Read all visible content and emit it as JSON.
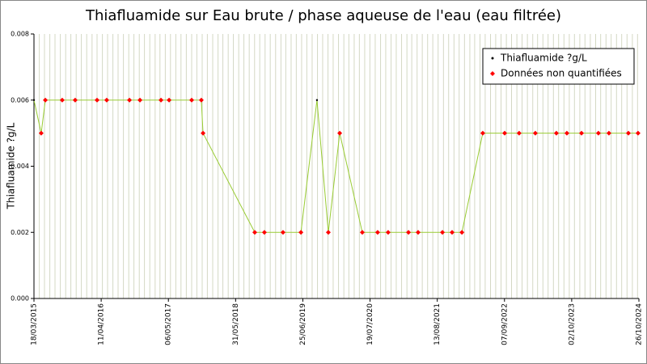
{
  "chart_data": {
    "type": "line",
    "title": "Thiafluamide sur Eau brute / phase aqueuse de l'eau (eau filtrée)",
    "y_label": "Thiafluamide ?g/L",
    "x": [
      "2015-03-18",
      "2015-04-29",
      "2015-05-23",
      "2015-08-29",
      "2015-11-12",
      "2016-03-18",
      "2016-05-13",
      "2016-09-22",
      "2016-11-22",
      "2017-03-24",
      "2017-05-10",
      "2017-09-18",
      "2017-11-13",
      "2017-11-23",
      "2018-09-19",
      "2018-11-14",
      "2019-03-02",
      "2019-06-14",
      "2019-09-15",
      "2019-11-20",
      "2020-01-25",
      "2020-06-04",
      "2020-09-01",
      "2020-11-01",
      "2021-02-27",
      "2021-04-24",
      "2021-09-12",
      "2021-11-07",
      "2022-01-03",
      "2022-05-04",
      "2022-09-08",
      "2022-12-01",
      "2023-03-05",
      "2023-07-05",
      "2023-09-04",
      "2023-11-28",
      "2024-03-05",
      "2024-05-05",
      "2024-08-26",
      "2024-10-21"
    ],
    "series": [
      {
        "name": "Thiafluamide ?g/L",
        "color": "#000000",
        "line_color": "#99cc33",
        "values": [
          0.006,
          0.005,
          0.006,
          0.006,
          0.006,
          0.006,
          0.006,
          0.006,
          0.006,
          0.006,
          0.006,
          0.006,
          0.006,
          0.005,
          0.002,
          0.002,
          0.002,
          0.002,
          0.006,
          0.002,
          0.005,
          0.002,
          0.002,
          0.002,
          0.002,
          0.002,
          0.002,
          0.002,
          0.002,
          0.005,
          0.005,
          0.005,
          0.005,
          0.005,
          0.005,
          0.005,
          0.005,
          0.005,
          0.005,
          0.005
        ]
      },
      {
        "name": "Données non quantifiées",
        "color": "#ff0000",
        "values": [
          null,
          0.005,
          0.006,
          0.006,
          0.006,
          0.006,
          0.006,
          0.006,
          0.006,
          0.006,
          0.006,
          0.006,
          0.006,
          0.005,
          0.002,
          0.002,
          0.002,
          0.002,
          null,
          0.002,
          0.005,
          0.002,
          0.002,
          0.002,
          0.002,
          0.002,
          0.002,
          0.002,
          0.002,
          0.005,
          0.005,
          0.005,
          0.005,
          0.005,
          0.005,
          0.005,
          0.005,
          0.005,
          0.005,
          0.005
        ]
      }
    ],
    "xlim": [
      "2015-03-18",
      "2024-10-26"
    ],
    "xticks": [
      {
        "value": "2015-03-18",
        "label": "18/03/2015"
      },
      {
        "value": "2016-04-11",
        "label": "11/04/2016"
      },
      {
        "value": "2017-05-06",
        "label": "06/05/2017"
      },
      {
        "value": "2018-05-31",
        "label": "31/05/2018"
      },
      {
        "value": "2019-06-25",
        "label": "25/06/2019"
      },
      {
        "value": "2020-07-19",
        "label": "19/07/2020"
      },
      {
        "value": "2021-08-13",
        "label": "13/08/2021"
      },
      {
        "value": "2022-09-07",
        "label": "07/09/2022"
      },
      {
        "value": "2023-10-02",
        "label": "02/10/2023"
      },
      {
        "value": "2024-10-26",
        "label": "26/10/2024"
      }
    ],
    "ylim": [
      0,
      0.008
    ],
    "yticks": [
      {
        "value": 0,
        "label": "0.000"
      },
      {
        "value": 0.002,
        "label": "0.002"
      },
      {
        "value": 0.004,
        "label": "0.004"
      },
      {
        "value": 0.006,
        "label": "0.006"
      },
      {
        "value": 0.008,
        "label": "0.008"
      }
    ],
    "grid": true,
    "legend_position": "top-right"
  }
}
